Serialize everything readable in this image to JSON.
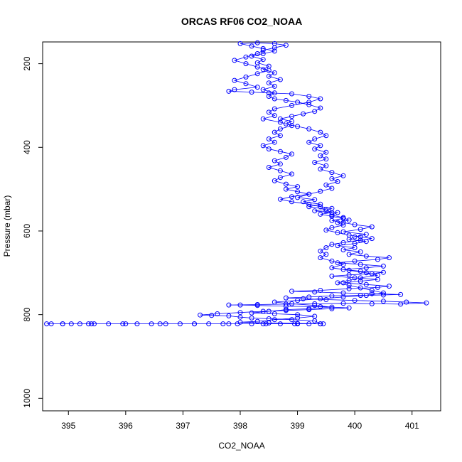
{
  "chart_data": {
    "type": "scatter",
    "title": "ORCAS RF06 CO2_NOAA",
    "xlabel": "CO2_NOAA",
    "ylabel": "Pressure (mbar)",
    "xlim": [
      394.55,
      401.5
    ],
    "ylim": [
      1030,
      148
    ],
    "y_axis_inverted": true,
    "grid": false,
    "legend": "none",
    "xticks": [
      395,
      396,
      397,
      398,
      399,
      400,
      401
    ],
    "yticks": [
      200,
      400,
      600,
      800,
      1000
    ],
    "point_style": "open-circle",
    "connect_points": true,
    "series_color": "#0000ff",
    "series": [
      {
        "name": "",
        "points": [
          [
            399.45,
            822
          ],
          [
            399.2,
            822
          ],
          [
            398.95,
            822
          ],
          [
            398.7,
            822
          ],
          [
            398.45,
            822
          ],
          [
            398.2,
            822
          ],
          [
            397.95,
            822
          ],
          [
            397.7,
            822
          ],
          [
            397.45,
            822
          ],
          [
            397.2,
            822
          ],
          [
            396.95,
            822
          ],
          [
            396.7,
            822
          ],
          [
            396.45,
            822
          ],
          [
            396.2,
            822
          ],
          [
            395.95,
            822
          ],
          [
            395.7,
            822
          ],
          [
            395.45,
            822
          ],
          [
            395.35,
            822
          ],
          [
            395.2,
            822
          ],
          [
            395.05,
            822
          ],
          [
            394.9,
            822
          ],
          [
            394.7,
            822
          ],
          [
            394.62,
            822
          ],
          [
            394.9,
            822
          ],
          [
            395.4,
            822
          ],
          [
            396.0,
            822
          ],
          [
            396.6,
            822
          ],
          [
            397.2,
            822
          ],
          [
            397.8,
            822
          ],
          [
            398.4,
            822
          ],
          [
            399.0,
            822
          ],
          [
            399.4,
            822
          ],
          [
            399.3,
            815
          ],
          [
            398.9,
            812
          ],
          [
            398.5,
            810
          ],
          [
            398.2,
            808
          ],
          [
            398.0,
            806
          ],
          [
            397.8,
            803
          ],
          [
            397.5,
            802
          ],
          [
            397.3,
            801
          ],
          [
            397.6,
            798
          ],
          [
            398.0,
            795
          ],
          [
            398.4,
            792
          ],
          [
            398.8,
            790
          ],
          [
            399.2,
            788
          ],
          [
            399.6,
            786
          ],
          [
            399.9,
            784
          ],
          [
            399.4,
            781
          ],
          [
            398.8,
            780
          ],
          [
            398.3,
            778
          ],
          [
            398.0,
            777
          ],
          [
            397.8,
            777
          ],
          [
            398.3,
            776
          ],
          [
            398.8,
            775
          ],
          [
            399.3,
            774
          ],
          [
            399.8,
            773
          ],
          [
            400.3,
            774
          ],
          [
            400.8,
            775
          ],
          [
            401.25,
            772
          ],
          [
            400.9,
            770
          ],
          [
            400.5,
            768
          ],
          [
            400.0,
            766
          ],
          [
            399.5,
            764
          ],
          [
            399.1,
            762
          ],
          [
            398.8,
            760
          ],
          [
            399.2,
            758
          ],
          [
            399.6,
            755
          ],
          [
            400.1,
            754
          ],
          [
            400.5,
            753
          ],
          [
            400.8,
            752
          ],
          [
            400.3,
            750
          ],
          [
            399.8,
            748
          ],
          [
            399.3,
            746
          ],
          [
            398.9,
            744
          ],
          [
            399.4,
            742
          ],
          [
            399.9,
            738
          ],
          [
            400.4,
            735
          ],
          [
            400.6,
            732
          ],
          [
            400.2,
            728
          ],
          [
            399.8,
            724
          ],
          [
            400.1,
            720
          ],
          [
            400.4,
            716
          ],
          [
            400.0,
            712
          ],
          [
            399.6,
            708
          ],
          [
            399.9,
            705
          ],
          [
            400.3,
            702
          ],
          [
            400.5,
            699
          ],
          [
            400.1,
            696
          ],
          [
            399.8,
            692
          ],
          [
            400.2,
            688
          ],
          [
            400.5,
            684
          ],
          [
            400.1,
            680
          ],
          [
            399.7,
            676
          ],
          [
            400.0,
            672
          ],
          [
            400.4,
            668
          ],
          [
            400.6,
            664
          ],
          [
            400.2,
            660
          ],
          [
            399.9,
            656
          ],
          [
            400.1,
            650
          ],
          [
            399.8,
            645
          ],
          [
            400.0,
            640
          ],
          [
            399.7,
            635
          ],
          [
            400.0,
            630
          ],
          [
            400.2,
            625
          ],
          [
            399.9,
            620
          ],
          [
            400.0,
            614
          ],
          [
            400.2,
            608
          ],
          [
            399.8,
            602
          ],
          [
            400.1,
            596
          ],
          [
            400.3,
            590
          ],
          [
            400.0,
            585
          ],
          [
            399.8,
            580
          ],
          [
            399.6,
            575
          ],
          [
            399.8,
            570
          ],
          [
            399.6,
            565
          ],
          [
            399.4,
            560
          ],
          [
            399.6,
            556
          ],
          [
            399.3,
            552
          ],
          [
            399.5,
            548
          ],
          [
            399.2,
            542
          ],
          [
            399.4,
            536
          ],
          [
            399.1,
            530
          ],
          [
            399.3,
            525
          ],
          [
            399.0,
            520
          ],
          [
            399.2,
            512
          ],
          [
            399.4,
            505
          ],
          [
            399.6,
            498
          ],
          [
            399.5,
            490
          ],
          [
            399.7,
            482
          ],
          [
            399.6,
            475
          ],
          [
            399.8,
            468
          ],
          [
            399.6,
            460
          ],
          [
            399.4,
            452
          ],
          [
            399.5,
            444
          ],
          [
            399.3,
            436
          ],
          [
            399.5,
            428
          ],
          [
            399.4,
            420
          ],
          [
            399.5,
            412
          ],
          [
            399.3,
            404
          ],
          [
            399.4,
            396
          ],
          [
            399.2,
            388
          ],
          [
            399.3,
            380
          ],
          [
            399.5,
            372
          ],
          [
            399.4,
            364
          ],
          [
            399.2,
            356
          ],
          [
            399.0,
            350
          ],
          [
            398.8,
            344
          ],
          [
            398.9,
            338
          ],
          [
            398.7,
            332
          ],
          [
            398.9,
            326
          ],
          [
            399.1,
            320
          ],
          [
            399.3,
            314
          ],
          [
            399.4,
            306
          ],
          [
            399.2,
            298
          ],
          [
            399.0,
            292
          ],
          [
            398.8,
            288
          ],
          [
            398.6,
            284
          ],
          [
            398.5,
            278
          ],
          [
            398.6,
            270
          ],
          [
            398.4,
            262
          ],
          [
            398.6,
            254
          ],
          [
            398.5,
            246
          ],
          [
            398.7,
            238
          ],
          [
            398.5,
            230
          ],
          [
            398.6,
            222
          ],
          [
            398.4,
            214
          ],
          [
            398.5,
            206
          ],
          [
            398.3,
            198
          ],
          [
            398.4,
            190
          ],
          [
            398.2,
            182
          ],
          [
            398.4,
            176
          ],
          [
            398.6,
            170
          ],
          [
            398.4,
            164
          ],
          [
            398.2,
            158
          ],
          [
            398.0,
            152
          ],
          [
            398.3,
            150
          ],
          [
            398.6,
            152
          ],
          [
            398.8,
            156
          ],
          [
            398.6,
            162
          ],
          [
            398.4,
            168
          ],
          [
            398.3,
            176
          ],
          [
            398.1,
            184
          ],
          [
            397.9,
            192
          ],
          [
            398.1,
            200
          ],
          [
            398.3,
            208
          ],
          [
            398.5,
            216
          ],
          [
            398.3,
            224
          ],
          [
            398.1,
            232
          ],
          [
            397.9,
            240
          ],
          [
            398.1,
            248
          ],
          [
            398.3,
            256
          ],
          [
            397.9,
            262
          ],
          [
            397.8,
            266
          ],
          [
            398.2,
            268
          ],
          [
            398.5,
            270
          ],
          [
            398.9,
            272
          ],
          [
            399.2,
            278
          ],
          [
            399.4,
            284
          ],
          [
            399.2,
            292
          ],
          [
            398.9,
            300
          ],
          [
            398.6,
            308
          ],
          [
            398.5,
            316
          ],
          [
            398.6,
            324
          ],
          [
            398.4,
            332
          ],
          [
            398.7,
            340
          ],
          [
            398.9,
            348
          ],
          [
            398.7,
            356
          ],
          [
            398.6,
            364
          ],
          [
            398.7,
            372
          ],
          [
            398.5,
            380
          ],
          [
            398.6,
            388
          ],
          [
            398.4,
            396
          ],
          [
            398.5,
            404
          ],
          [
            398.7,
            410
          ],
          [
            398.9,
            416
          ],
          [
            398.8,
            424
          ],
          [
            398.6,
            432
          ],
          [
            398.7,
            440
          ],
          [
            398.5,
            448
          ],
          [
            398.7,
            456
          ],
          [
            398.9,
            464
          ],
          [
            398.7,
            472
          ],
          [
            398.6,
            480
          ],
          [
            398.8,
            488
          ],
          [
            399.0,
            494
          ],
          [
            398.8,
            500
          ],
          [
            399.0,
            506
          ],
          [
            399.2,
            512
          ],
          [
            398.9,
            518
          ],
          [
            398.7,
            524
          ],
          [
            398.9,
            530
          ],
          [
            399.2,
            536
          ],
          [
            399.4,
            542
          ],
          [
            399.6,
            546
          ],
          [
            399.5,
            552
          ],
          [
            399.7,
            556
          ],
          [
            399.6,
            562
          ],
          [
            399.8,
            568
          ],
          [
            399.9,
            574
          ],
          [
            399.7,
            580
          ],
          [
            399.8,
            586
          ],
          [
            399.6,
            592
          ],
          [
            399.5,
            598
          ],
          [
            399.7,
            604
          ],
          [
            399.9,
            610
          ],
          [
            400.1,
            614
          ],
          [
            400.3,
            618
          ],
          [
            400.1,
            622
          ],
          [
            399.8,
            628
          ],
          [
            399.6,
            632
          ],
          [
            399.5,
            640
          ],
          [
            399.4,
            648
          ],
          [
            399.5,
            656
          ],
          [
            399.4,
            664
          ],
          [
            399.6,
            672
          ],
          [
            399.8,
            680
          ],
          [
            399.6,
            688
          ],
          [
            399.9,
            694
          ],
          [
            400.2,
            700
          ],
          [
            400.4,
            706
          ],
          [
            400.1,
            712
          ],
          [
            399.9,
            718
          ],
          [
            399.7,
            724
          ],
          [
            399.9,
            730
          ],
          [
            400.1,
            736
          ],
          [
            400.3,
            742
          ],
          [
            400.5,
            748
          ],
          [
            400.2,
            754
          ],
          [
            399.8,
            758
          ],
          [
            399.4,
            762
          ],
          [
            399.0,
            766
          ],
          [
            398.6,
            770
          ],
          [
            398.9,
            774
          ],
          [
            399.3,
            778
          ],
          [
            399.6,
            782
          ],
          [
            399.2,
            786
          ],
          [
            398.8,
            788
          ],
          [
            398.5,
            792
          ],
          [
            398.2,
            796
          ],
          [
            398.6,
            798
          ],
          [
            399.0,
            800
          ],
          [
            399.3,
            804
          ],
          [
            399.0,
            808
          ],
          [
            398.6,
            812
          ],
          [
            398.3,
            816
          ],
          [
            398.0,
            818
          ],
          [
            398.5,
            820
          ],
          [
            399.0,
            821
          ],
          [
            399.4,
            822
          ]
        ]
      }
    ]
  }
}
